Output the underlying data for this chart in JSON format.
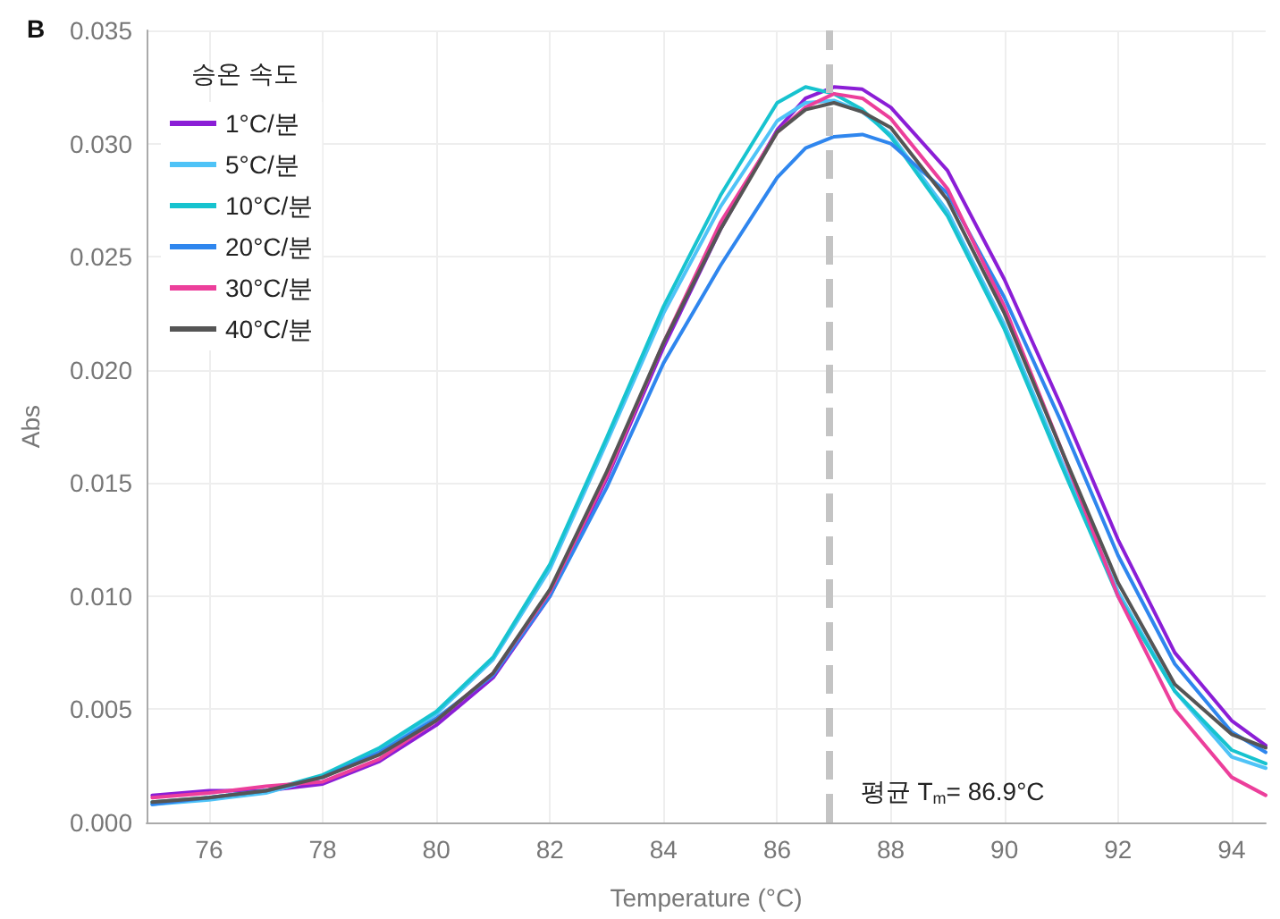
{
  "chart_data": {
    "type": "line",
    "title": "B",
    "xlabel": "Temperature (°C)",
    "ylabel": "Abs",
    "legend_title": "승온 속도",
    "x": [
      75,
      76,
      77,
      78,
      79,
      80,
      81,
      82,
      83,
      84,
      85,
      86,
      86.5,
      87,
      87.5,
      88,
      89,
      90,
      91,
      92,
      93,
      94,
      94.6
    ],
    "series": [
      {
        "name": "1°C/분",
        "color": "#8b1ed6",
        "values": [
          0.0012,
          0.0014,
          0.0014,
          0.0017,
          0.0027,
          0.0043,
          0.0064,
          0.01,
          0.0152,
          0.021,
          0.0262,
          0.0306,
          0.032,
          0.0325,
          0.0324,
          0.0316,
          0.0288,
          0.024,
          0.0184,
          0.0125,
          0.0075,
          0.0045,
          0.0034
        ]
      },
      {
        "name": "5°C/분",
        "color": "#4fc3f7",
        "values": [
          0.0008,
          0.001,
          0.0013,
          0.002,
          0.0032,
          0.0048,
          0.0072,
          0.0112,
          0.0168,
          0.0225,
          0.0272,
          0.031,
          0.0318,
          0.0319,
          0.0314,
          0.0304,
          0.027,
          0.022,
          0.016,
          0.0102,
          0.0058,
          0.0029,
          0.0024
        ]
      },
      {
        "name": "10°C/분",
        "color": "#17c3cf",
        "values": [
          0.0009,
          0.0011,
          0.0014,
          0.0021,
          0.0033,
          0.0049,
          0.0073,
          0.0114,
          0.017,
          0.0228,
          0.0277,
          0.0318,
          0.0325,
          0.0322,
          0.0315,
          0.0303,
          0.0268,
          0.0218,
          0.0158,
          0.01,
          0.0058,
          0.0032,
          0.0026
        ]
      },
      {
        "name": "20°C/분",
        "color": "#2f86ee",
        "values": [
          0.0008,
          0.0011,
          0.0014,
          0.002,
          0.0031,
          0.0046,
          0.0065,
          0.01,
          0.0148,
          0.0203,
          0.0246,
          0.0285,
          0.0298,
          0.0303,
          0.0304,
          0.03,
          0.0278,
          0.0232,
          0.0177,
          0.0118,
          0.007,
          0.004,
          0.0031
        ]
      },
      {
        "name": "30°C/분",
        "color": "#ec3f9b",
        "values": [
          0.0011,
          0.0013,
          0.0016,
          0.0018,
          0.0028,
          0.0045,
          0.0066,
          0.0102,
          0.0153,
          0.0212,
          0.0265,
          0.0305,
          0.0316,
          0.0322,
          0.032,
          0.0311,
          0.028,
          0.0228,
          0.0165,
          0.01,
          0.005,
          0.002,
          0.0012
        ]
      },
      {
        "name": "40°C/분",
        "color": "#555555",
        "values": [
          0.0009,
          0.0011,
          0.0014,
          0.002,
          0.003,
          0.0045,
          0.0066,
          0.0103,
          0.0155,
          0.0212,
          0.0262,
          0.0305,
          0.0315,
          0.0318,
          0.0314,
          0.0307,
          0.0275,
          0.0225,
          0.0165,
          0.0106,
          0.0061,
          0.0039,
          0.0033
        ]
      }
    ],
    "xlim": [
      74.9,
      94.6
    ],
    "xticks": [
      76,
      78,
      80,
      82,
      84,
      86,
      88,
      90,
      92,
      94
    ],
    "ylim": [
      0,
      0.035
    ],
    "yticks": [
      {
        "value": 0,
        "label": "0.000"
      },
      {
        "value": 0.005,
        "label": "0.005"
      },
      {
        "value": 0.01,
        "label": "0.010"
      },
      {
        "value": 0.015,
        "label": "0.015"
      },
      {
        "value": 0.02,
        "label": "0.020"
      },
      {
        "value": 0.025,
        "label": "0.025"
      },
      {
        "value": 0.03,
        "label": "0.030"
      },
      {
        "value": 0.035,
        "label": "0.035"
      }
    ],
    "ref_lines": [
      {
        "axis": "x",
        "value": 86.9,
        "label": "평균 T$_{m}$= 86.9°C",
        "color": "#c4c4c4",
        "line_style": "dashed"
      }
    ],
    "grid": true,
    "legend": "top left",
    "marker": "none",
    "line_style": "solid"
  }
}
